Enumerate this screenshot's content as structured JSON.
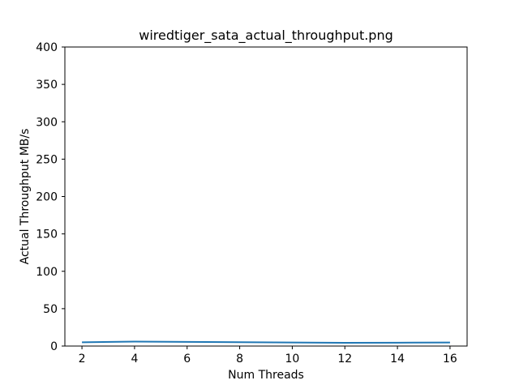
{
  "chart_data": {
    "type": "line",
    "title": "wiredtiger_sata_actual_throughput.png",
    "xlabel": "Num Threads",
    "ylabel": "Actual Throughput MB/s",
    "xlim": [
      1.35,
      16.65
    ],
    "ylim": [
      0,
      400
    ],
    "xticks": [
      2,
      4,
      6,
      8,
      10,
      12,
      14,
      16
    ],
    "yticks": [
      0,
      50,
      100,
      150,
      200,
      250,
      300,
      350,
      400
    ],
    "grid": false,
    "series": [
      {
        "color": "#1f77b4",
        "x": [
          2,
          4,
          6,
          8,
          10,
          12,
          14,
          16
        ],
        "y": [
          5.0,
          6.0,
          5.6,
          5.2,
          4.8,
          4.3,
          4.5,
          4.8
        ]
      }
    ]
  }
}
